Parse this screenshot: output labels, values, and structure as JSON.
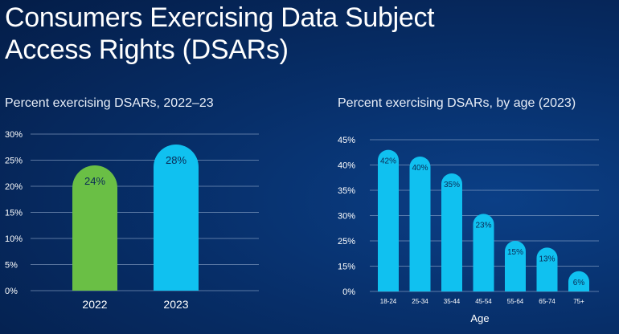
{
  "title": "Consumers Exercising Data Subject Access Rights (DSARs)",
  "colors": {
    "background": "#062a5e",
    "green": "#6abf45",
    "blue": "#10c1f0"
  },
  "chart_data": [
    {
      "type": "bar",
      "title": "Percent exercising DSARs, 2022–23",
      "categories": [
        "2022",
        "2023"
      ],
      "values": [
        24,
        28
      ],
      "value_labels": [
        "24%",
        "28%"
      ],
      "bar_colors": [
        "#6abf45",
        "#10c1f0"
      ],
      "y_ticks": [
        "0%",
        "5%",
        "10%",
        "15%",
        "20%",
        "25%",
        "30%"
      ],
      "ylim": [
        0,
        30
      ],
      "xlabel": "",
      "ylabel": "",
      "grid": true
    },
    {
      "type": "bar",
      "title": "Percent exercising DSARs, by age (2023)",
      "categories": [
        "18-24",
        "25-34",
        "35-44",
        "45-54",
        "55-64",
        "65-74",
        "75+"
      ],
      "values": [
        42,
        40,
        35,
        23,
        15,
        13,
        6
      ],
      "value_labels": [
        "42%",
        "40%",
        "35%",
        "23%",
        "15%",
        "13%",
        "6%"
      ],
      "bar_color": "#10c1f0",
      "y_ticks": [
        "0%",
        "15%",
        "25%",
        "30%",
        "35%",
        "40%",
        "45%"
      ],
      "ylim": [
        0,
        45
      ],
      "xlabel": "Age",
      "ylabel": "",
      "grid": true
    }
  ]
}
